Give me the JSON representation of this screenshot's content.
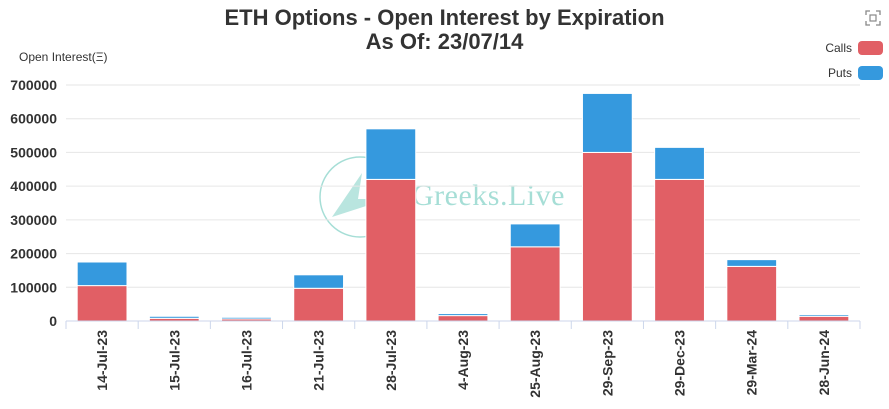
{
  "header": {
    "title_line1": "ETH Options - Open Interest by Expiration",
    "title_line2": "As Of: 23/07/14"
  },
  "toolbar": {
    "expand_icon": "expand-icon"
  },
  "watermark": {
    "text": "Greeks.Live"
  },
  "colors": {
    "calls": "#e15f65",
    "puts": "#3599de",
    "grid": "#e6e6e6",
    "axis": "#333333"
  },
  "chart_data": {
    "type": "bar",
    "stacked": true,
    "ylabel": "Open Interest(Ξ)",
    "xlabel": "",
    "ylim": [
      0,
      700000
    ],
    "yticks": [
      0,
      100000,
      200000,
      300000,
      400000,
      500000,
      600000,
      700000
    ],
    "grid": true,
    "legend_position": "top-right",
    "categories": [
      "14-Jul-23",
      "15-Jul-23",
      "16-Jul-23",
      "21-Jul-23",
      "28-Jul-23",
      "4-Aug-23",
      "25-Aug-23",
      "29-Sep-23",
      "29-Dec-23",
      "29-Mar-24",
      "28-Jun-24"
    ],
    "series": [
      {
        "name": "Calls",
        "values": [
          105000,
          8000,
          6000,
          97000,
          420000,
          16000,
          220000,
          500000,
          420000,
          162000,
          14000
        ]
      },
      {
        "name": "Puts",
        "values": [
          70000,
          6000,
          5000,
          40000,
          150000,
          6000,
          68000,
          175000,
          95000,
          20000,
          5000
        ]
      }
    ]
  }
}
